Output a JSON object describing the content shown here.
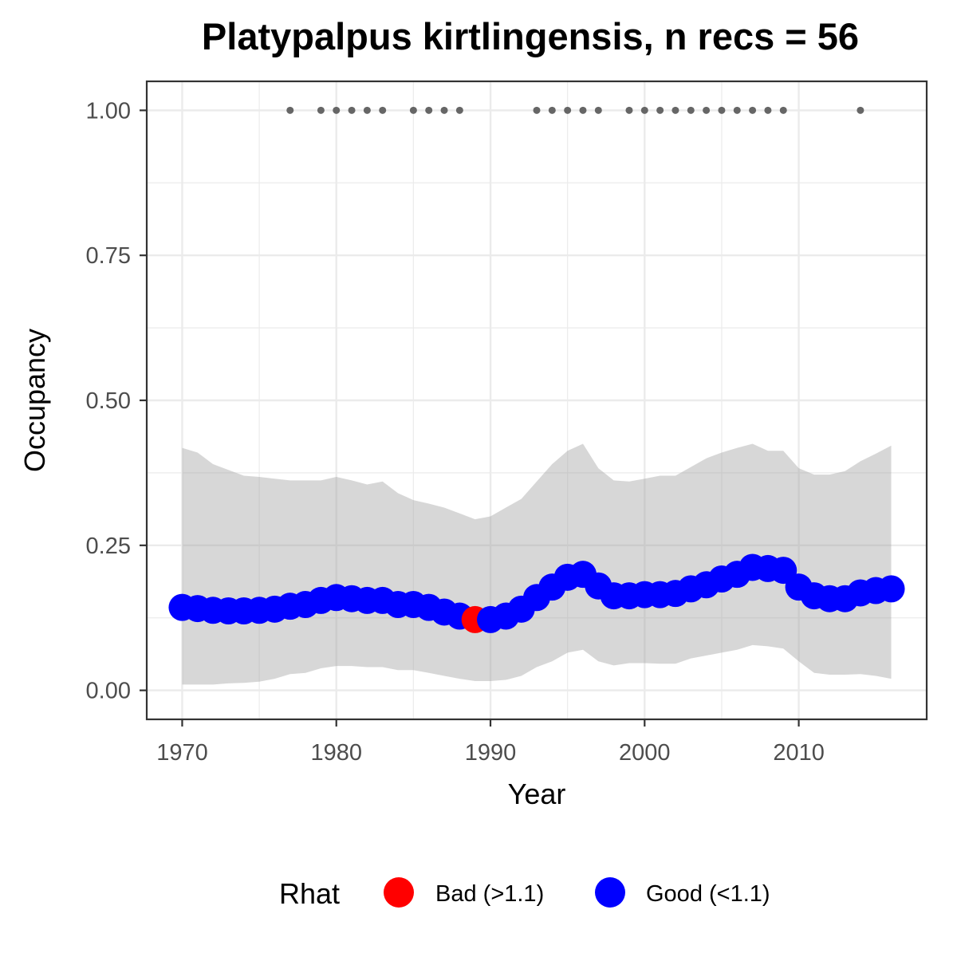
{
  "chart_data": {
    "type": "line",
    "title": "Platypalpus kirtlingensis, n recs = 56",
    "xlabel": "Year",
    "ylabel": "Occupancy",
    "xlim": [
      1967.7,
      2018.3
    ],
    "ylim": [
      -0.05,
      1.05
    ],
    "x_ticks": [
      1970,
      1980,
      1990,
      2000,
      2010
    ],
    "x_tick_labels": [
      "1970",
      "1980",
      "1990",
      "2000",
      "2010"
    ],
    "y_ticks": [
      0,
      0.25,
      0.5,
      0.75,
      1
    ],
    "y_tick_labels": [
      "0.00",
      "0.25",
      "0.50",
      "0.75",
      "1.00"
    ],
    "grid": true,
    "legend": {
      "title": "Rhat",
      "position": "bottom",
      "items": [
        {
          "label": "Bad (>1.1)",
          "color": "#ff0000"
        },
        {
          "label": "Good (<1.1)",
          "color": "#0000ff"
        }
      ]
    },
    "series": [
      {
        "name": "Occupancy",
        "x": [
          1970,
          1971,
          1972,
          1973,
          1974,
          1975,
          1976,
          1977,
          1978,
          1979,
          1980,
          1981,
          1982,
          1983,
          1984,
          1985,
          1986,
          1987,
          1988,
          1989,
          1990,
          1991,
          1992,
          1993,
          1994,
          1995,
          1996,
          1997,
          1998,
          1999,
          2000,
          2001,
          2002,
          2003,
          2004,
          2005,
          2006,
          2007,
          2008,
          2009,
          2010,
          2011,
          2012,
          2013,
          2014,
          2015,
          2016
        ],
        "y": [
          0.143,
          0.141,
          0.138,
          0.137,
          0.137,
          0.138,
          0.14,
          0.145,
          0.148,
          0.155,
          0.16,
          0.158,
          0.155,
          0.155,
          0.148,
          0.148,
          0.143,
          0.135,
          0.128,
          0.122,
          0.122,
          0.128,
          0.14,
          0.16,
          0.178,
          0.195,
          0.2,
          0.18,
          0.163,
          0.163,
          0.165,
          0.165,
          0.167,
          0.175,
          0.182,
          0.192,
          0.2,
          0.212,
          0.21,
          0.207,
          0.178,
          0.163,
          0.158,
          0.158,
          0.168,
          0.172,
          0.175
        ],
        "rhat": [
          "Good",
          "Good",
          "Good",
          "Good",
          "Good",
          "Good",
          "Good",
          "Good",
          "Good",
          "Good",
          "Good",
          "Good",
          "Good",
          "Good",
          "Good",
          "Good",
          "Good",
          "Good",
          "Good",
          "Bad",
          "Good",
          "Good",
          "Good",
          "Good",
          "Good",
          "Good",
          "Good",
          "Good",
          "Good",
          "Good",
          "Good",
          "Good",
          "Good",
          "Good",
          "Good",
          "Good",
          "Good",
          "Good",
          "Good",
          "Good",
          "Good",
          "Good",
          "Good",
          "Good",
          "Good",
          "Good",
          "Good"
        ],
        "lower": [
          0.01,
          0.01,
          0.01,
          0.012,
          0.013,
          0.015,
          0.02,
          0.028,
          0.03,
          0.038,
          0.042,
          0.042,
          0.04,
          0.04,
          0.035,
          0.035,
          0.03,
          0.025,
          0.02,
          0.016,
          0.016,
          0.018,
          0.025,
          0.04,
          0.05,
          0.065,
          0.07,
          0.05,
          0.043,
          0.047,
          0.047,
          0.046,
          0.046,
          0.055,
          0.06,
          0.065,
          0.07,
          0.078,
          0.076,
          0.072,
          0.05,
          0.03,
          0.027,
          0.027,
          0.028,
          0.025,
          0.02
        ],
        "upper": [
          0.418,
          0.41,
          0.39,
          0.38,
          0.37,
          0.368,
          0.365,
          0.362,
          0.362,
          0.362,
          0.368,
          0.362,
          0.355,
          0.36,
          0.34,
          0.328,
          0.322,
          0.315,
          0.305,
          0.295,
          0.3,
          0.315,
          0.33,
          0.36,
          0.39,
          0.413,
          0.425,
          0.383,
          0.362,
          0.36,
          0.365,
          0.37,
          0.37,
          0.385,
          0.4,
          0.41,
          0.418,
          0.425,
          0.413,
          0.413,
          0.383,
          0.372,
          0.372,
          0.378,
          0.395,
          0.408,
          0.422
        ]
      },
      {
        "name": "Records",
        "x": [
          1977,
          1979,
          1980,
          1981,
          1982,
          1983,
          1985,
          1986,
          1987,
          1988,
          1993,
          1994,
          1995,
          1996,
          1997,
          1999,
          2000,
          2001,
          2002,
          2003,
          2004,
          2005,
          2006,
          2007,
          2008,
          2009,
          2014
        ],
        "y": [
          1,
          1,
          1,
          1,
          1,
          1,
          1,
          1,
          1,
          1,
          1,
          1,
          1,
          1,
          1,
          1,
          1,
          1,
          1,
          1,
          1,
          1,
          1,
          1,
          1,
          1,
          1
        ]
      }
    ],
    "colors": {
      "ribbon": "#d3d3d3",
      "good": "#0000ff",
      "bad": "#ff0000",
      "records": "#666666",
      "grid": "#ebebeb",
      "panel_border": "#333333"
    }
  }
}
